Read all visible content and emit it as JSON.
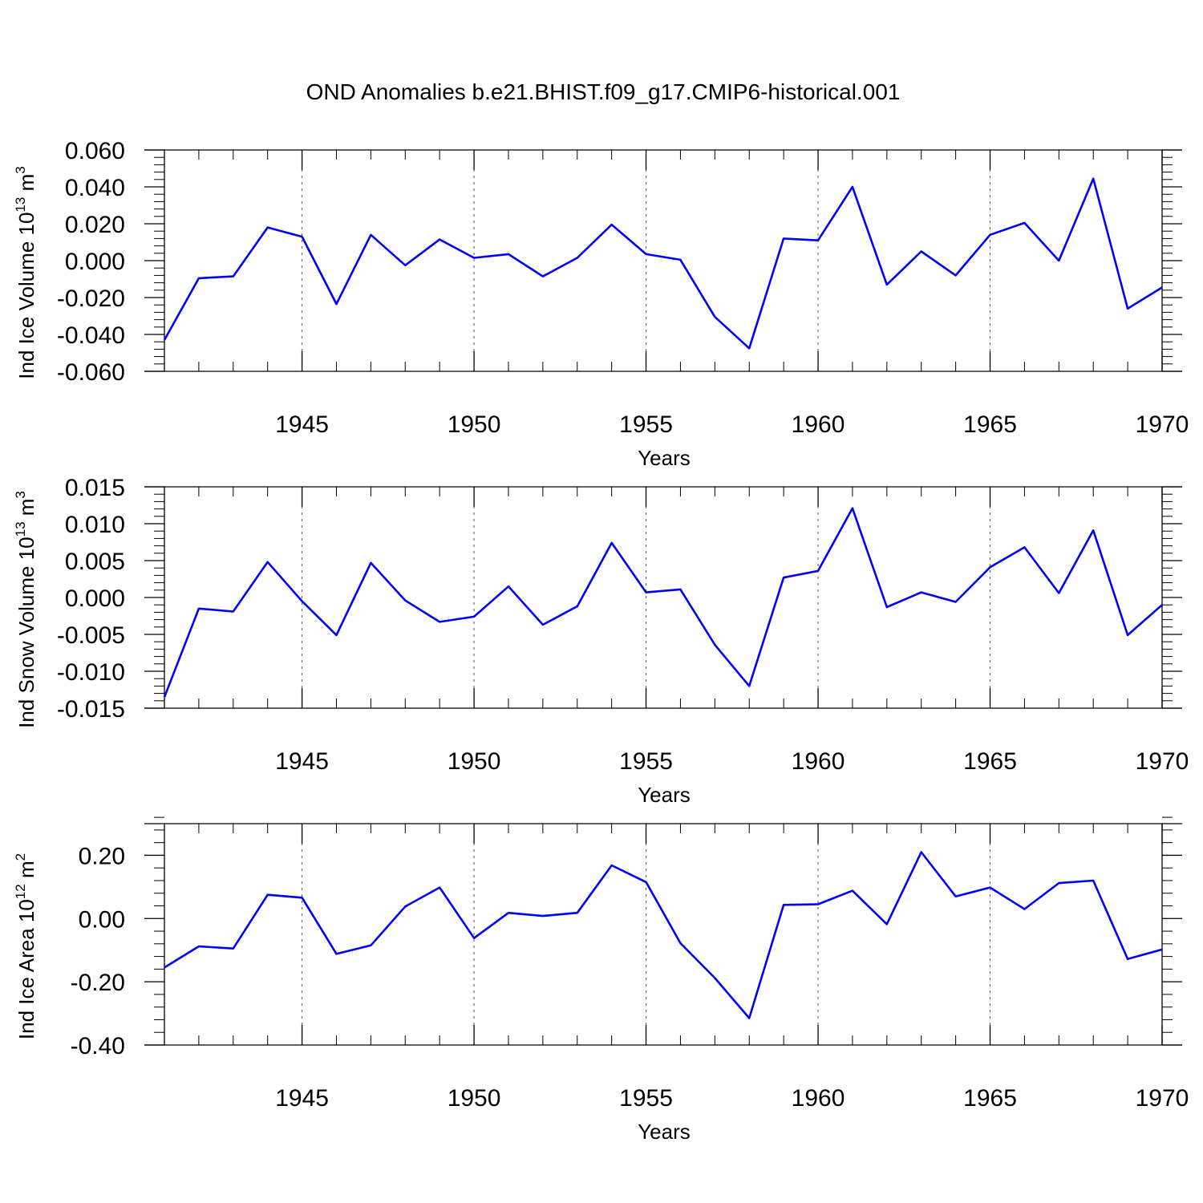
{
  "figure_title": "OND Anomalies b.e21.BHIST.f09_g17.CMIP6-historical.001",
  "colors": {
    "line": "#0000ff",
    "axis": "#000000",
    "grid": "#555555"
  },
  "chart_data": [
    {
      "type": "line",
      "ylabel": "Ind Ice Volume 10",
      "ylabel_sup": "13",
      "ylabel_unit": "m",
      "ylabel_unit_sup": "3",
      "xlabel": "Years",
      "xlim": [
        1941,
        1970
      ],
      "ylim": [
        -0.06,
        0.06
      ],
      "yticks": [
        -0.06,
        -0.04,
        -0.02,
        0.0,
        0.02,
        0.04,
        0.06
      ],
      "ytick_labels": [
        "-0.060",
        "-0.040",
        "-0.020",
        "0.000",
        "0.020",
        "0.040",
        "0.060"
      ],
      "xticks": [
        1945,
        1950,
        1955,
        1960,
        1965,
        1970
      ],
      "xtick_labels": [
        "1945",
        "1950",
        "1955",
        "1960",
        "1965",
        "1970"
      ],
      "x": [
        1941,
        1942,
        1943,
        1944,
        1945,
        1946,
        1947,
        1948,
        1949,
        1950,
        1951,
        1952,
        1953,
        1954,
        1955,
        1956,
        1957,
        1958,
        1959,
        1960,
        1961,
        1962,
        1963,
        1964,
        1965,
        1966,
        1967,
        1968,
        1969,
        1970
      ],
      "values": [
        -0.043,
        -0.0095,
        -0.0085,
        0.018,
        0.013,
        -0.0235,
        0.014,
        -0.0025,
        0.0115,
        0.0015,
        0.0035,
        -0.0085,
        0.0015,
        0.0195,
        0.0035,
        0.0005,
        -0.0305,
        -0.0475,
        0.012,
        0.011,
        0.04,
        -0.013,
        0.005,
        -0.008,
        0.014,
        0.0205,
        0.0,
        0.0445,
        -0.026,
        -0.0145
      ]
    },
    {
      "type": "line",
      "ylabel": "Ind Snow Volume 10",
      "ylabel_sup": "13",
      "ylabel_unit": "m",
      "ylabel_unit_sup": "3",
      "xlabel": "Years",
      "xlim": [
        1941,
        1970
      ],
      "ylim": [
        -0.015,
        0.015
      ],
      "yticks": [
        -0.015,
        -0.01,
        -0.005,
        0.0,
        0.005,
        0.01,
        0.015
      ],
      "ytick_labels": [
        "-0.015",
        "-0.010",
        "-0.005",
        "0.000",
        "0.005",
        "0.010",
        "0.015"
      ],
      "xticks": [
        1945,
        1950,
        1955,
        1960,
        1965,
        1970
      ],
      "xtick_labels": [
        "1945",
        "1950",
        "1955",
        "1960",
        "1965",
        "1970"
      ],
      "x": [
        1941,
        1942,
        1943,
        1944,
        1945,
        1946,
        1947,
        1948,
        1949,
        1950,
        1951,
        1952,
        1953,
        1954,
        1955,
        1956,
        1957,
        1958,
        1959,
        1960,
        1961,
        1962,
        1963,
        1964,
        1965,
        1966,
        1967,
        1968,
        1969,
        1970
      ],
      "values": [
        -0.0135,
        -0.0015,
        -0.0019,
        0.0048,
        -0.0005,
        -0.0051,
        0.0047,
        -0.0004,
        -0.0033,
        -0.0026,
        0.0015,
        -0.0037,
        -0.0012,
        0.0074,
        0.0007,
        0.0011,
        -0.0064,
        -0.012,
        0.0027,
        0.0036,
        0.0121,
        -0.0013,
        0.0007,
        -0.0006,
        0.0041,
        0.0068,
        0.0006,
        0.0091,
        -0.0051,
        -0.001
      ]
    },
    {
      "type": "line",
      "ylabel": "Ind Ice Area 10",
      "ylabel_sup": "12",
      "ylabel_unit": "m",
      "ylabel_unit_sup": "2",
      "xlabel": "Years",
      "xlim": [
        1941,
        1970
      ],
      "ylim": [
        -0.4,
        0.3
      ],
      "yticks": [
        -0.4,
        -0.2,
        0.0,
        0.2
      ],
      "ytick_labels": [
        "-0.40",
        "-0.20",
        "0.00",
        "0.20"
      ],
      "xticks": [
        1945,
        1950,
        1955,
        1960,
        1965,
        1970
      ],
      "xtick_labels": [
        "1945",
        "1950",
        "1955",
        "1960",
        "1965",
        "1970"
      ],
      "x": [
        1941,
        1942,
        1943,
        1944,
        1945,
        1946,
        1947,
        1948,
        1949,
        1950,
        1951,
        1952,
        1953,
        1954,
        1955,
        1956,
        1957,
        1958,
        1959,
        1960,
        1961,
        1962,
        1963,
        1964,
        1965,
        1966,
        1967,
        1968,
        1969,
        1970
      ],
      "values": [
        -0.155,
        -0.088,
        -0.095,
        0.075,
        0.066,
        -0.112,
        -0.085,
        0.038,
        0.098,
        -0.062,
        0.018,
        0.008,
        0.018,
        0.168,
        0.115,
        -0.078,
        -0.188,
        -0.315,
        0.043,
        0.045,
        0.088,
        -0.018,
        0.21,
        0.07,
        0.098,
        0.03,
        0.112,
        0.12,
        -0.128,
        -0.098
      ]
    }
  ]
}
